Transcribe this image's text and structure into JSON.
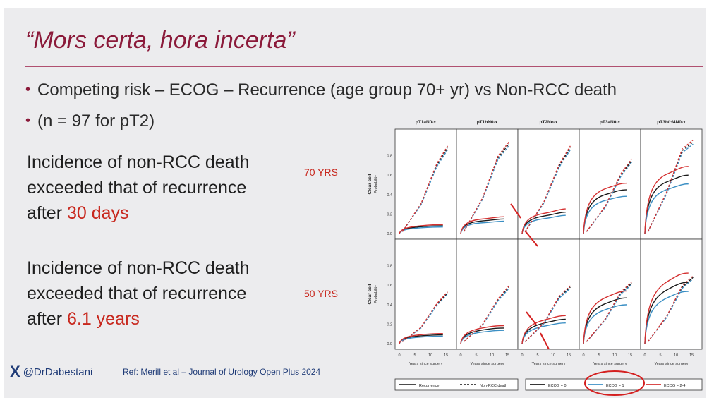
{
  "slide": {
    "title": "“Mors certa, hora incerta”",
    "bullets": [
      "Competing risk – ECOG – Recurrence (age group 70+ yr) vs Non-RCC death",
      "(n = 97 for pT2)"
    ],
    "stat1": {
      "line1": "Incidence of non-RCC death",
      "line2": "exceeded that of recurrence",
      "line3_prefix": "after ",
      "line3_highlight": "30 days"
    },
    "stat2": {
      "line1": "Incidence of non-RCC death",
      "line2": "exceeded that of recurrence",
      "line3_prefix": "after ",
      "line3_highlight": "6.1 years"
    },
    "age_labels": [
      "70 YRS",
      "50 YRS"
    ],
    "footer": {
      "logo_glyph": "X",
      "handle": "@DrDabestani",
      "reference": "Ref: Merill et al – Journal of Urology Open Plus 2024"
    },
    "colors": {
      "title": "#8b1a3a",
      "highlight": "#c8281e",
      "ecog0": "#1a1a1a",
      "ecog1": "#3b8fc4",
      "ecog24": "#d43030",
      "annotation": "#d42020"
    }
  },
  "chart_data": {
    "type": "line",
    "panels": [
      "pT1aN0-x",
      "pT1bN0-x",
      "pT2No-x",
      "pT3aN0-x",
      "pT3b/c/4N0-x"
    ],
    "ylabel_main": "Clear cell",
    "ylabel_sub": "Probability",
    "yticks": [
      "0.8",
      "0.6",
      "0.4",
      "0.2",
      "0.0"
    ],
    "xticks": [
      "0",
      "5",
      "10",
      "15"
    ],
    "xlabel": "Years since surgery",
    "ylim": [
      0,
      1.0
    ],
    "xlim": [
      0,
      17
    ],
    "legend_type": [
      "Recurrence",
      "Non-RCC death"
    ],
    "legend_ecog": [
      "ECOG = 0",
      "ECOG = 1",
      "ECOG = 2-4"
    ],
    "rows": [
      {
        "name": "70 YRS",
        "panels": [
          {
            "recurrence": [
              0.06,
              0.07,
              0.08
            ],
            "death": [
              0.55,
              0.7,
              0.88
            ]
          },
          {
            "recurrence": [
              0.12,
              0.13,
              0.15
            ],
            "death": [
              0.65,
              0.78,
              0.92
            ]
          },
          {
            "recurrence": [
              0.16,
              0.18,
              0.22
            ],
            "death": [
              0.58,
              0.7,
              0.88
            ]
          },
          {
            "recurrence": [
              0.36,
              0.4,
              0.45
            ],
            "death": [
              0.5,
              0.6,
              0.75
            ]
          },
          {
            "recurrence": [
              0.48,
              0.53,
              0.6
            ],
            "death": [
              0.76,
              0.85,
              0.94
            ]
          }
        ]
      },
      {
        "name": "50 YRS",
        "panels": [
          {
            "recurrence": [
              0.07,
              0.08,
              0.09
            ],
            "death": [
              0.3,
              0.4,
              0.52
            ]
          },
          {
            "recurrence": [
              0.12,
              0.14,
              0.16
            ],
            "death": [
              0.35,
              0.45,
              0.58
            ]
          },
          {
            "recurrence": [
              0.18,
              0.21,
              0.25
            ],
            "death": [
              0.38,
              0.48,
              0.58
            ]
          },
          {
            "recurrence": [
              0.36,
              0.41,
              0.47
            ],
            "death": [
              0.45,
              0.52,
              0.62
            ]
          },
          {
            "recurrence": [
              0.48,
              0.55,
              0.63
            ],
            "death": [
              0.5,
              0.58,
              0.68
            ]
          }
        ]
      }
    ]
  }
}
